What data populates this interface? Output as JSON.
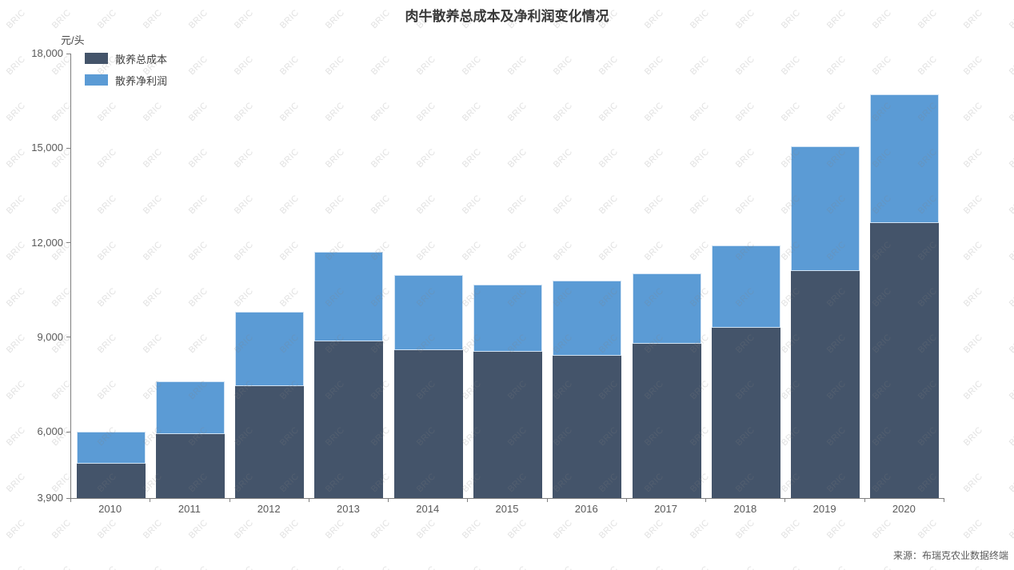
{
  "title": "肉牛散养总成本及净利润变化情况",
  "y_axis_unit": "元/头",
  "source": "来源：布瑞克农业数据终端",
  "watermark": "BRIC",
  "colors": {
    "cost": "#44546a",
    "profit": "#5b9bd5",
    "axis": "#7f7f7f",
    "tick_text": "#595959"
  },
  "chart_data": {
    "type": "bar",
    "stacked": true,
    "title": "肉牛散养总成本及净利润变化情况",
    "xlabel": "",
    "ylabel": "元/头",
    "categories": [
      "2010",
      "2011",
      "2012",
      "2013",
      "2014",
      "2015",
      "2016",
      "2017",
      "2018",
      "2019",
      "2020"
    ],
    "series": [
      {
        "name": "散养总成本",
        "color": "#44546a",
        "values": [
          5000,
          5920,
          7450,
          8880,
          8600,
          8540,
          8420,
          8800,
          9310,
          11100,
          12620
        ]
      },
      {
        "name": "散养净利润",
        "color": "#5b9bd5",
        "values": [
          1000,
          1690,
          2350,
          2820,
          2380,
          2120,
          2380,
          2230,
          2600,
          3950,
          4080
        ]
      }
    ],
    "stacked_totals": [
      6000,
      7610,
      9800,
      11700,
      10980,
      10660,
      10800,
      11030,
      11910,
      15050,
      16700
    ],
    "ylim": [
      3900,
      18000
    ],
    "y_ticks": [
      3900,
      6000,
      9000,
      12000,
      15000,
      18000
    ],
    "grid": false,
    "legend_position": "top-left"
  }
}
